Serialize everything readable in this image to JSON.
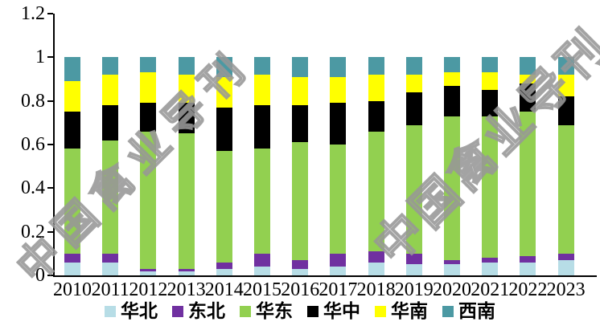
{
  "watermark": {
    "text": "中国禽业导刊",
    "color": "#a5a5a5"
  },
  "chart_data": {
    "type": "bar",
    "stacked": true,
    "normalized": true,
    "title": "",
    "xlabel": "",
    "ylabel": "",
    "ylim": [
      0,
      1.2
    ],
    "yticks": [
      "0",
      "0.2",
      "0.4",
      "0.6",
      "0.8",
      "1",
      "1.2"
    ],
    "grid": false,
    "legend_position": "bottom",
    "categories": [
      "2010",
      "2011",
      "2012",
      "2013",
      "2014",
      "2015",
      "2016",
      "2017",
      "2018",
      "2019",
      "2020",
      "2021",
      "2022",
      "2023"
    ],
    "series": [
      {
        "name": "华北",
        "color": "#b7dde6",
        "values": [
          0.06,
          0.06,
          0.02,
          0.02,
          0.03,
          0.04,
          0.03,
          0.04,
          0.06,
          0.05,
          0.05,
          0.06,
          0.06,
          0.07
        ]
      },
      {
        "name": "东北",
        "color": "#7030a0",
        "values": [
          0.04,
          0.04,
          0.01,
          0.01,
          0.03,
          0.06,
          0.04,
          0.06,
          0.05,
          0.05,
          0.02,
          0.02,
          0.03,
          0.03
        ]
      },
      {
        "name": "华东",
        "color": "#92d050",
        "values": [
          0.48,
          0.52,
          0.63,
          0.62,
          0.51,
          0.48,
          0.54,
          0.5,
          0.55,
          0.59,
          0.66,
          0.65,
          0.66,
          0.59
        ]
      },
      {
        "name": "华中",
        "color": "#000000",
        "values": [
          0.17,
          0.16,
          0.13,
          0.14,
          0.2,
          0.2,
          0.17,
          0.19,
          0.14,
          0.15,
          0.14,
          0.12,
          0.13,
          0.13
        ]
      },
      {
        "name": "华南",
        "color": "#ffff00",
        "values": [
          0.14,
          0.14,
          0.14,
          0.13,
          0.14,
          0.14,
          0.13,
          0.12,
          0.12,
          0.08,
          0.06,
          0.08,
          0.04,
          0.1
        ]
      },
      {
        "name": "西南",
        "color": "#4c99a3",
        "values": [
          0.11,
          0.08,
          0.07,
          0.08,
          0.09,
          0.08,
          0.09,
          0.09,
          0.08,
          0.08,
          0.07,
          0.07,
          0.08,
          0.08
        ]
      }
    ]
  }
}
